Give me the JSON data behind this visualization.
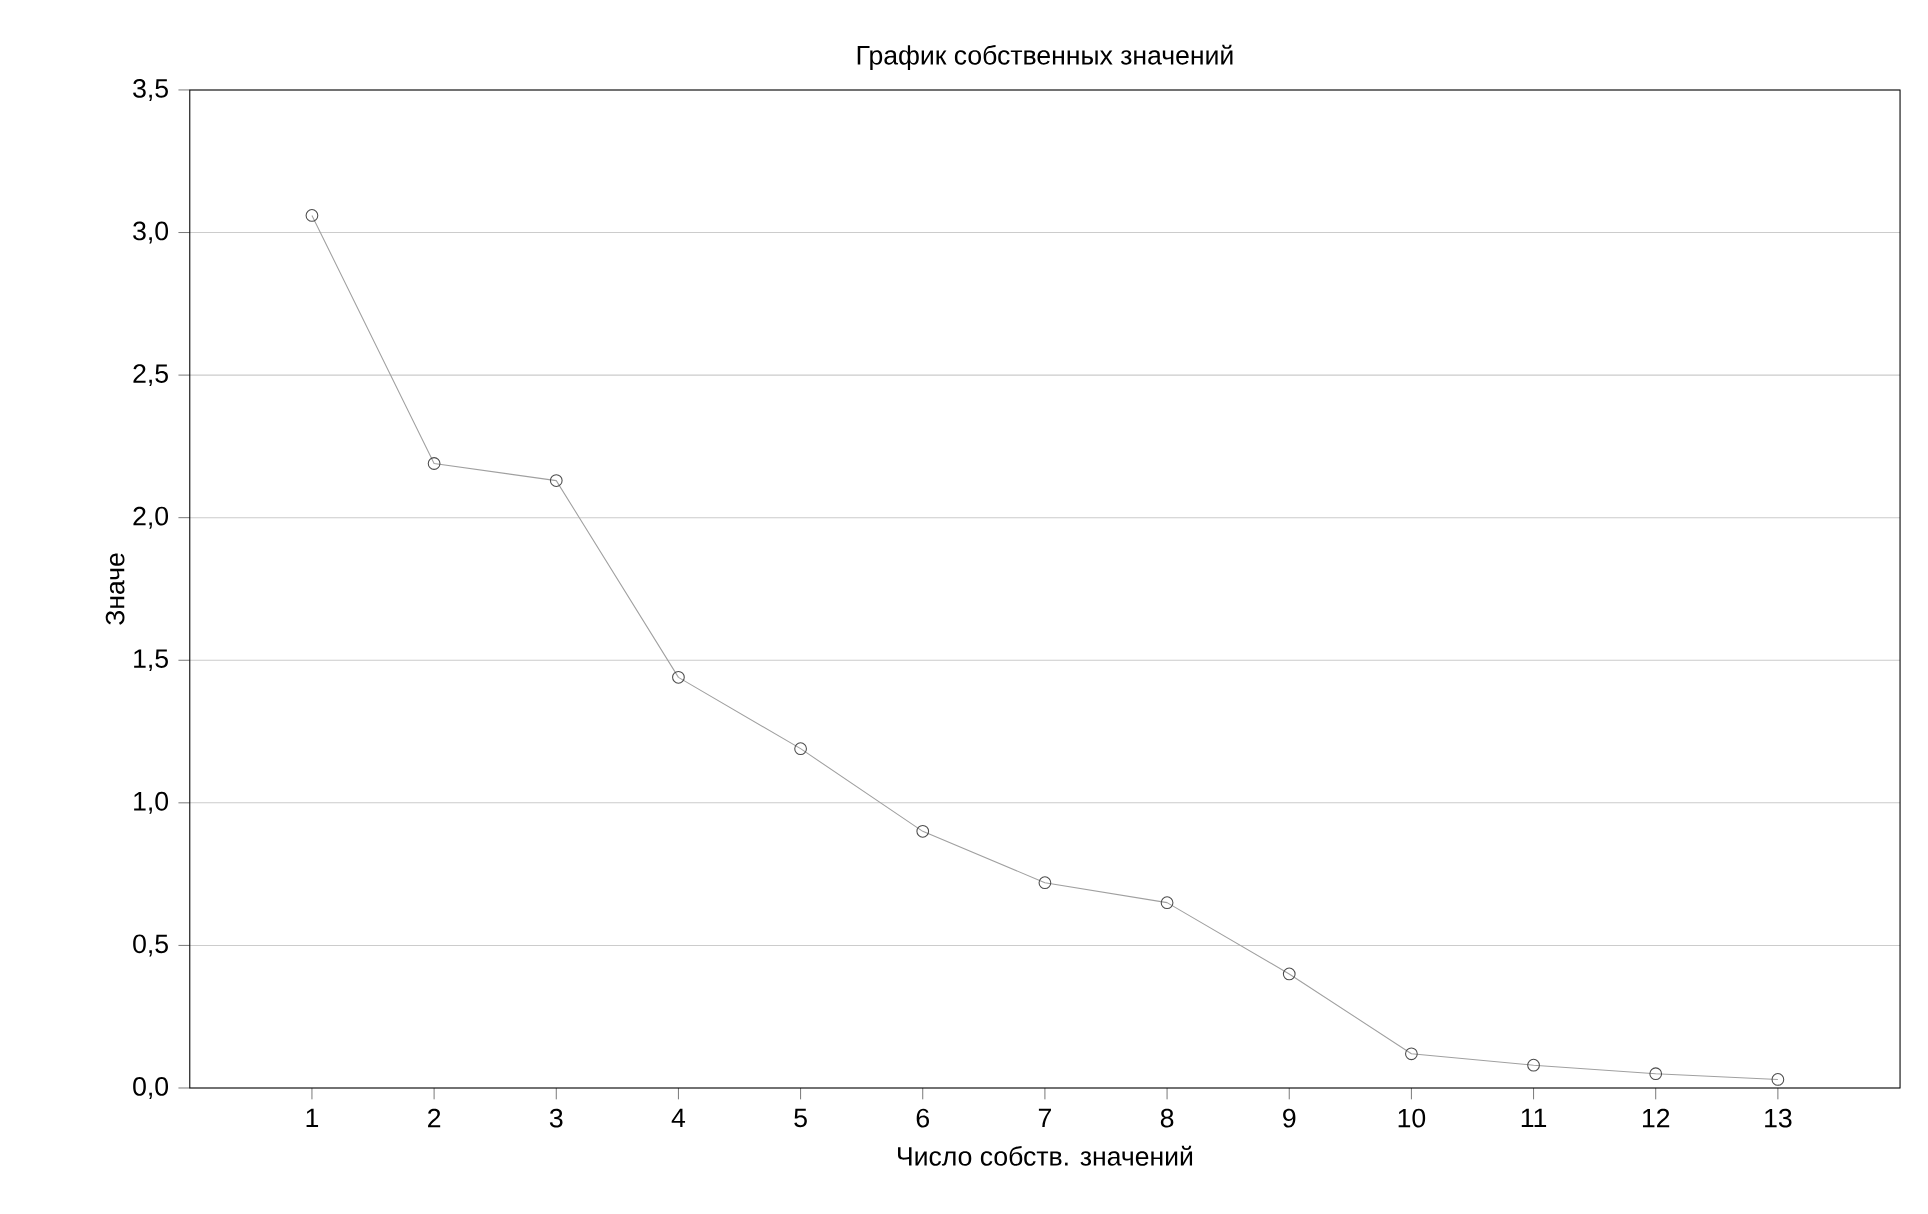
{
  "chart_data": {
    "type": "line",
    "title": "График собственных значений",
    "xlabel": "Число собств. значений",
    "ylabel": "Значе",
    "x": [
      1,
      2,
      3,
      4,
      5,
      6,
      7,
      8,
      9,
      10,
      11,
      12,
      13
    ],
    "series": [
      {
        "color": "#a0a0a0",
        "values": [
          3.06,
          2.19,
          2.13,
          1.44,
          1.19,
          0.9,
          0.72,
          0.65,
          0.4,
          0.12,
          0.08,
          0.05,
          0.03
        ]
      }
    ],
    "xlim": [
      0,
      14
    ],
    "xticks": [
      1,
      2,
      3,
      4,
      5,
      6,
      7,
      8,
      9,
      10,
      11,
      12,
      13
    ],
    "ylim": [
      0,
      3.5
    ],
    "yticks": [
      {
        "value": 0,
        "label": "0,0"
      },
      {
        "value": 0.5,
        "label": "0,5"
      },
      {
        "value": 1,
        "label": "1,0"
      },
      {
        "value": 1.5,
        "label": "1,5"
      },
      {
        "value": 2,
        "label": "2,0"
      },
      {
        "value": 2.5,
        "label": "2,5"
      },
      {
        "value": 3,
        "label": "3,0"
      },
      {
        "value": 3.5,
        "label": "3,5"
      }
    ],
    "grid": "y",
    "marker": "circle",
    "line_style": "solid"
  }
}
